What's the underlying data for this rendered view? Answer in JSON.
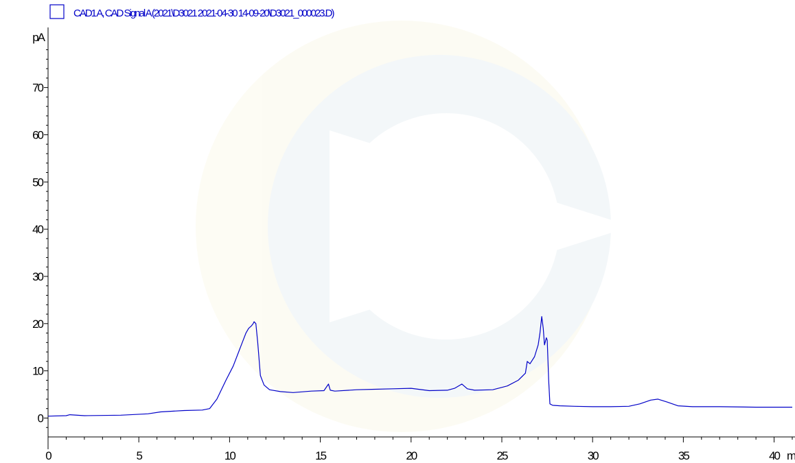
{
  "chart_data": {
    "type": "line",
    "title": "",
    "xlabel": "min",
    "ylabel": "pA",
    "xlim": [
      0,
      41
    ],
    "ylim": [
      -4,
      82
    ],
    "x_ticks": [
      0,
      5,
      10,
      15,
      20,
      25,
      30,
      35,
      40
    ],
    "y_ticks": [
      0,
      10,
      20,
      30,
      40,
      50,
      60,
      70
    ],
    "grid": false,
    "legend": "top-left",
    "series": [
      {
        "name": "CAD1 A, CAD Signal A (2021\\D3021 2021-04-30 14-09-20\\D3021_000023.D)",
        "color": "#0000c8",
        "x": [
          0,
          1,
          1.2,
          2,
          4,
          5.5,
          6.2,
          7.5,
          8.5,
          8.9,
          9.3,
          9.8,
          10.2,
          10.5,
          10.7,
          10.9,
          11.05,
          11.2,
          11.3,
          11.35,
          11.45,
          11.55,
          11.7,
          11.9,
          12.2,
          12.8,
          13.5,
          14.5,
          15.2,
          15.45,
          15.55,
          15.8,
          17,
          18,
          19,
          20,
          21,
          22,
          22.4,
          22.8,
          23.1,
          23.5,
          24.5,
          25.3,
          25.9,
          26.3,
          26.4,
          26.55,
          26.8,
          27.0,
          27.1,
          27.2,
          27.28,
          27.35,
          27.45,
          27.5,
          27.58,
          27.65,
          27.8,
          28.2,
          29,
          30,
          31,
          32,
          32.6,
          33.2,
          33.6,
          34.1,
          34.7,
          35.5,
          37,
          39,
          41
        ],
        "y": [
          0.4,
          0.5,
          0.7,
          0.5,
          0.6,
          0.9,
          1.3,
          1.6,
          1.7,
          2.0,
          4.0,
          8.0,
          11.0,
          14.0,
          16.0,
          18.0,
          19.0,
          19.5,
          20.0,
          20.4,
          20.0,
          16.0,
          9.0,
          7.0,
          6.0,
          5.6,
          5.4,
          5.7,
          5.8,
          7.2,
          5.9,
          5.7,
          6.0,
          6.1,
          6.2,
          6.3,
          5.8,
          5.9,
          6.3,
          7.2,
          6.2,
          5.9,
          6.0,
          6.8,
          8.0,
          9.5,
          12.0,
          11.5,
          13.0,
          15.5,
          18.0,
          21.5,
          19.0,
          15.5,
          17.0,
          16.5,
          8.0,
          3.0,
          2.7,
          2.6,
          2.5,
          2.4,
          2.4,
          2.5,
          3.0,
          3.8,
          4.0,
          3.4,
          2.6,
          2.4,
          2.4,
          2.3,
          2.3
        ]
      }
    ]
  },
  "legend": {
    "label": "CAD1 A, CAD Signal A (2021\\D3021 2021-04-30 14-09-20\\D3021_000023.D)"
  },
  "axes": {
    "y_unit": "pA",
    "x_unit": "min"
  }
}
